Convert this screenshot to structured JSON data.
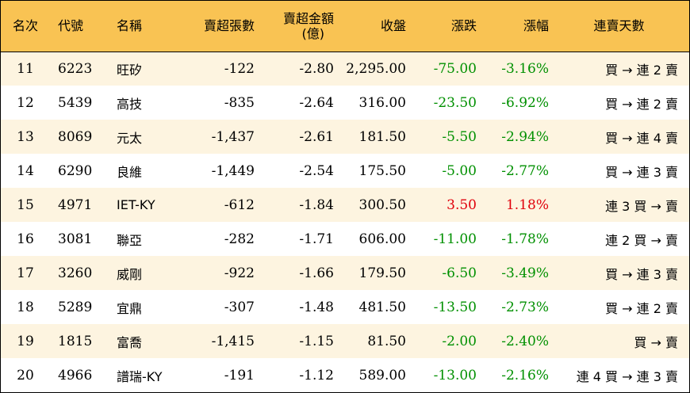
{
  "colors": {
    "header_bg": "#f9c353",
    "odd_row_bg": "#fdf4e0",
    "even_row_bg": "#ffffff",
    "down": "#009000",
    "up": "#e0000b"
  },
  "headers": {
    "rank": "名次",
    "code": "代號",
    "name": "名稱",
    "net_sell_lots": "賣超張數",
    "net_sell_amount_line1": "賣超金額",
    "net_sell_amount_line2": "(億)",
    "close": "收盤",
    "change": "漲跌",
    "change_pct": "漲幅",
    "streak": "連賣天數"
  },
  "rows": [
    {
      "rank": "11",
      "code": "6223",
      "name": "旺矽",
      "net_sell_lots": "-122",
      "net_sell_amount": "-2.80",
      "close": "2,295.00",
      "change": "-75.00",
      "change_pct": "-3.16%",
      "direction": "down",
      "streak": "買 → 連 2 賣"
    },
    {
      "rank": "12",
      "code": "5439",
      "name": "高技",
      "net_sell_lots": "-835",
      "net_sell_amount": "-2.64",
      "close": "316.00",
      "change": "-23.50",
      "change_pct": "-6.92%",
      "direction": "down",
      "streak": "買 → 連 2 賣"
    },
    {
      "rank": "13",
      "code": "8069",
      "name": "元太",
      "net_sell_lots": "-1,437",
      "net_sell_amount": "-2.61",
      "close": "181.50",
      "change": "-5.50",
      "change_pct": "-2.94%",
      "direction": "down",
      "streak": "買 → 連 4 賣"
    },
    {
      "rank": "14",
      "code": "6290",
      "name": "良維",
      "net_sell_lots": "-1,449",
      "net_sell_amount": "-2.54",
      "close": "175.50",
      "change": "-5.00",
      "change_pct": "-2.77%",
      "direction": "down",
      "streak": "買 → 連 3 賣"
    },
    {
      "rank": "15",
      "code": "4971",
      "name": "IET-KY",
      "net_sell_lots": "-612",
      "net_sell_amount": "-1.84",
      "close": "300.50",
      "change": "3.50",
      "change_pct": "1.18%",
      "direction": "up",
      "streak": "連 3 買 → 賣"
    },
    {
      "rank": "16",
      "code": "3081",
      "name": "聯亞",
      "net_sell_lots": "-282",
      "net_sell_amount": "-1.71",
      "close": "606.00",
      "change": "-11.00",
      "change_pct": "-1.78%",
      "direction": "down",
      "streak": "連 2 買 → 賣"
    },
    {
      "rank": "17",
      "code": "3260",
      "name": "威剛",
      "net_sell_lots": "-922",
      "net_sell_amount": "-1.66",
      "close": "179.50",
      "change": "-6.50",
      "change_pct": "-3.49%",
      "direction": "down",
      "streak": "買 → 連 3 賣"
    },
    {
      "rank": "18",
      "code": "5289",
      "name": "宜鼎",
      "net_sell_lots": "-307",
      "net_sell_amount": "-1.48",
      "close": "481.50",
      "change": "-13.50",
      "change_pct": "-2.73%",
      "direction": "down",
      "streak": "買 → 連 2 賣"
    },
    {
      "rank": "19",
      "code": "1815",
      "name": "富喬",
      "net_sell_lots": "-1,415",
      "net_sell_amount": "-1.15",
      "close": "81.50",
      "change": "-2.00",
      "change_pct": "-2.40%",
      "direction": "down",
      "streak": "買 → 賣"
    },
    {
      "rank": "20",
      "code": "4966",
      "name": "譜瑞-KY",
      "net_sell_lots": "-191",
      "net_sell_amount": "-1.12",
      "close": "589.00",
      "change": "-13.00",
      "change_pct": "-2.16%",
      "direction": "down",
      "streak": "連 4 買 → 連 3 賣"
    }
  ]
}
